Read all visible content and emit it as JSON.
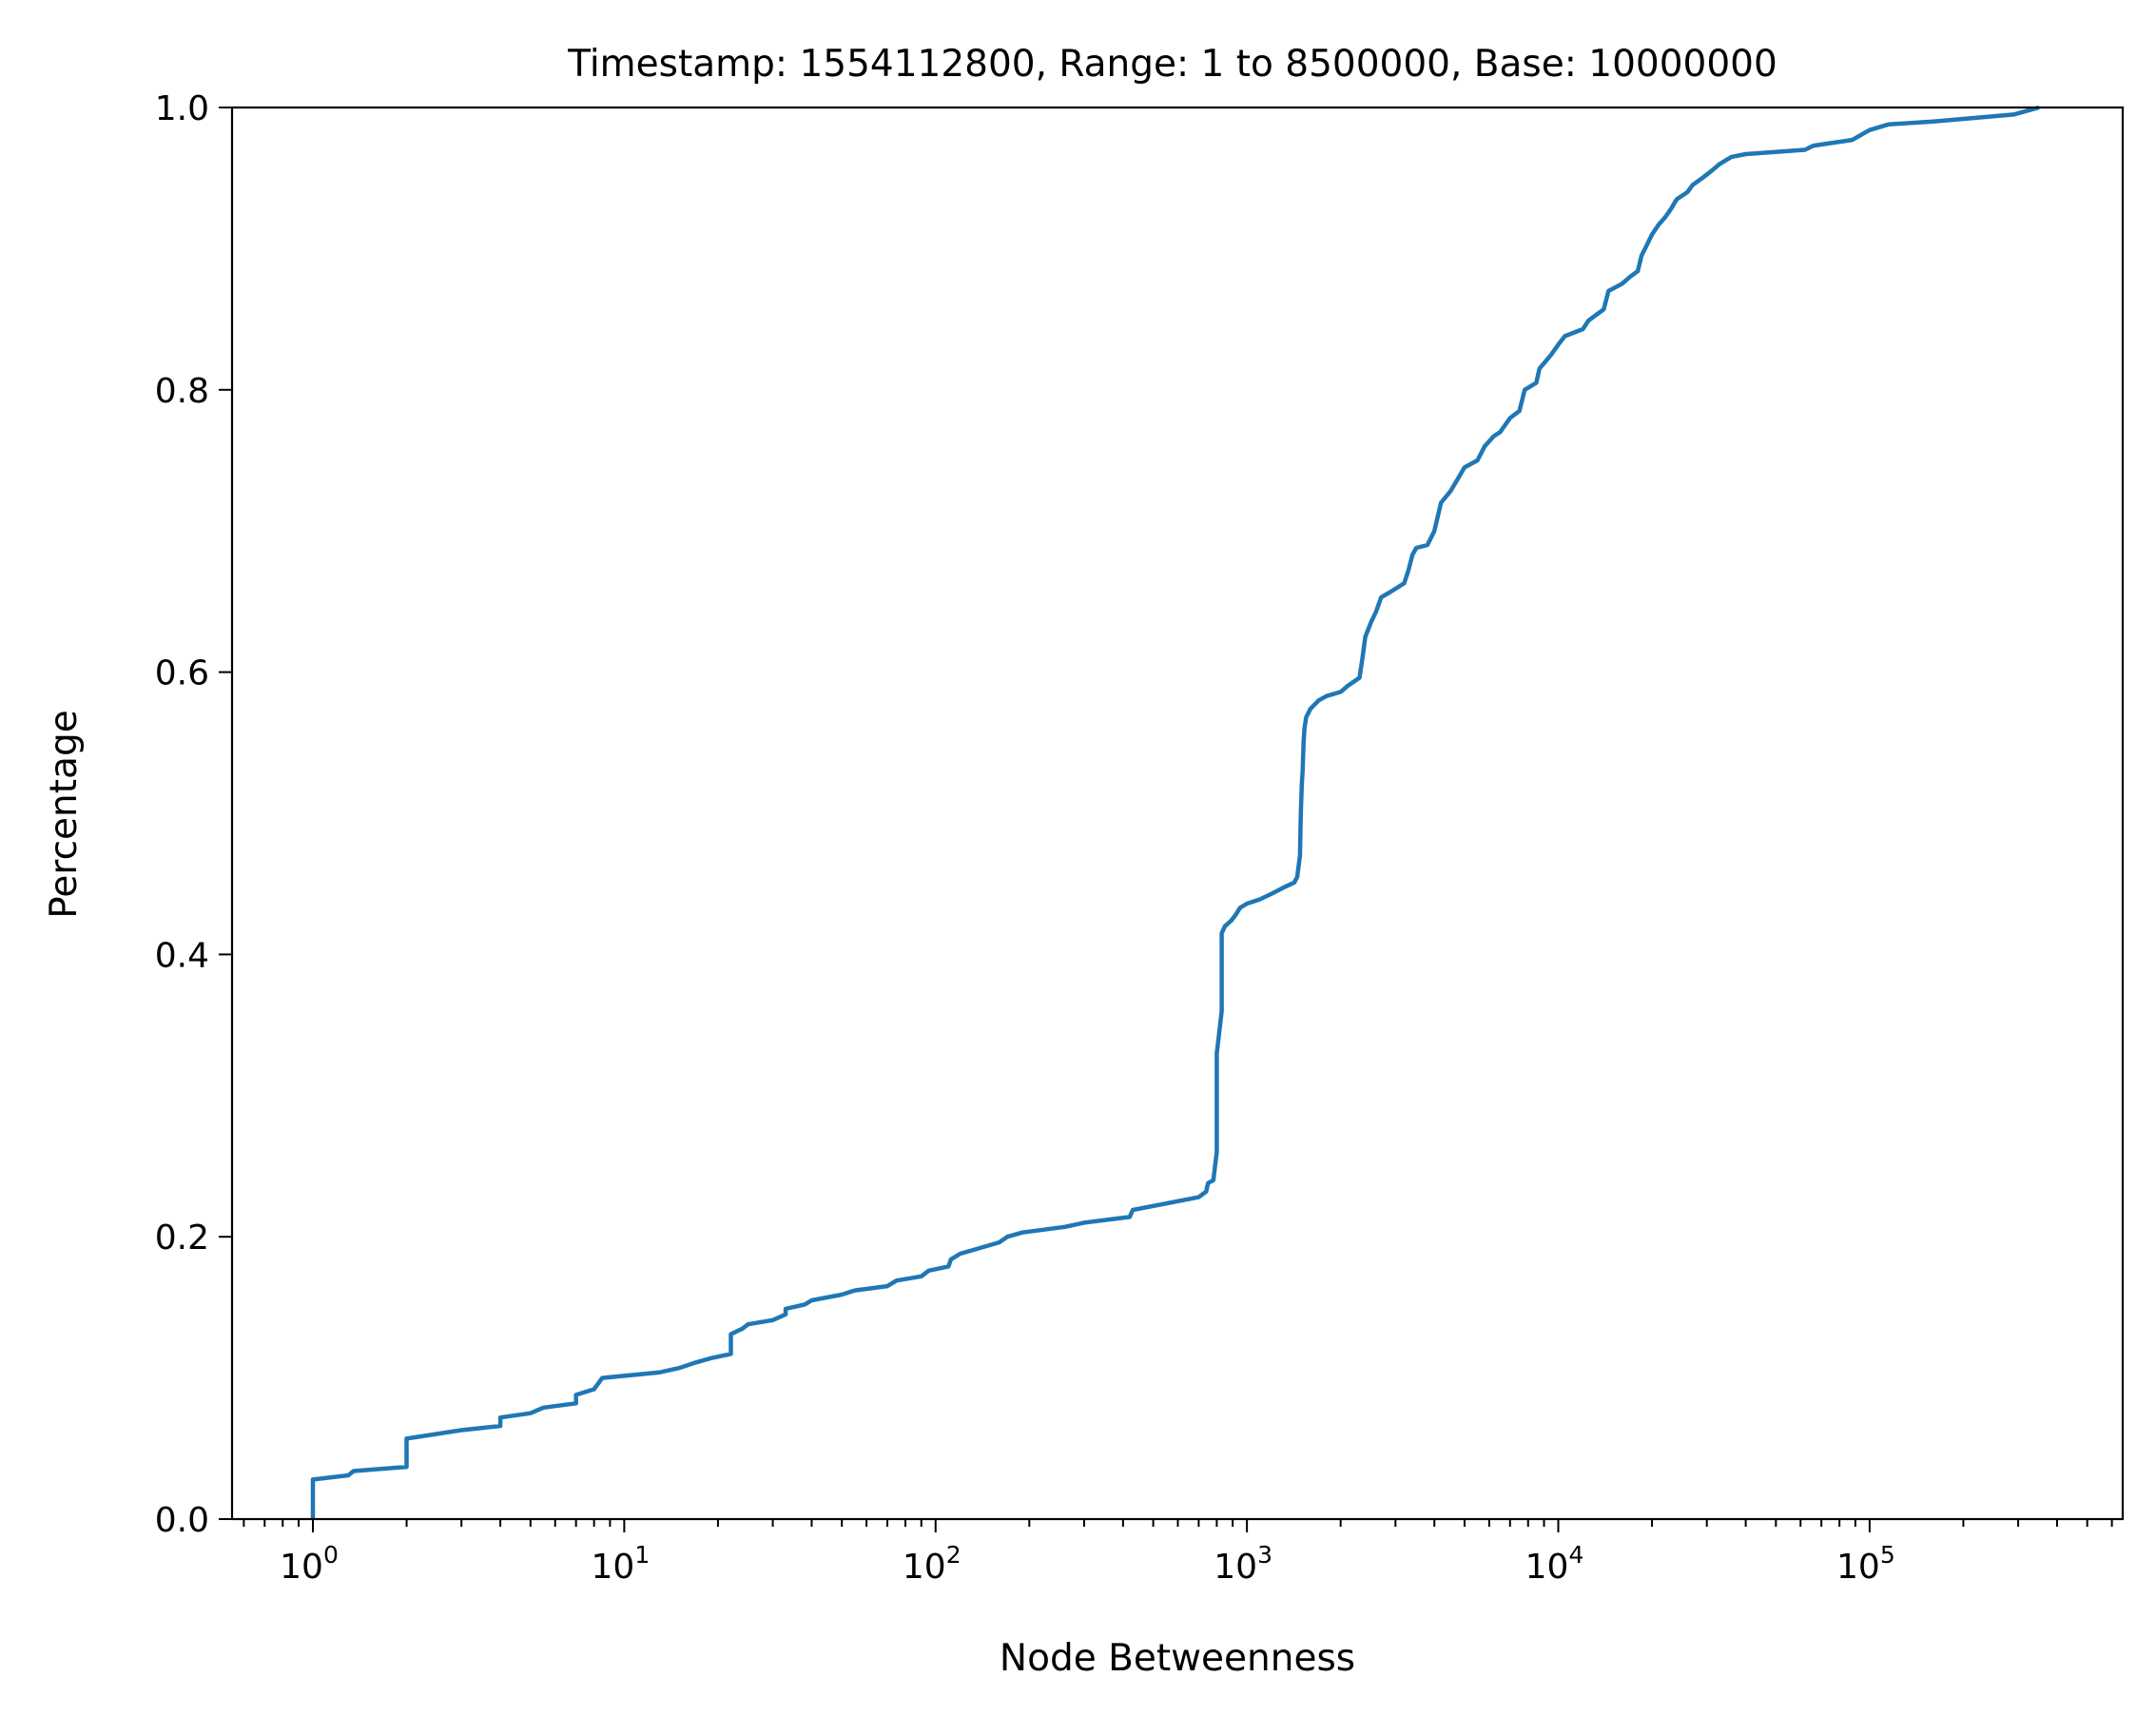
{
  "chart_data": {
    "type": "line",
    "title": "Timestamp: 1554112800, Range: 1 to 8500000, Base: 10000000",
    "xlabel": "Node Betweenness",
    "ylabel": "Percentage",
    "xscale": "log",
    "xlim": [
      0.55,
      650000
    ],
    "ylim": [
      0.0,
      1.0
    ],
    "grid": false,
    "legend": "none",
    "x_ticks": [
      {
        "base": "10",
        "exp": "0",
        "value": 1
      },
      {
        "base": "10",
        "exp": "1",
        "value": 10
      },
      {
        "base": "10",
        "exp": "2",
        "value": 100
      },
      {
        "base": "10",
        "exp": "3",
        "value": 1000
      },
      {
        "base": "10",
        "exp": "4",
        "value": 10000
      },
      {
        "base": "10",
        "exp": "5",
        "value": 100000
      }
    ],
    "y_ticks": [
      {
        "label": "0.0",
        "value": 0.0
      },
      {
        "label": "0.2",
        "value": 0.2
      },
      {
        "label": "0.4",
        "value": 0.4
      },
      {
        "label": "0.6",
        "value": 0.6
      },
      {
        "label": "0.8",
        "value": 0.8
      },
      {
        "label": "1.0",
        "value": 1.0
      }
    ],
    "series": [
      {
        "color": "#1f77b4",
        "points": [
          [
            1.0,
            0.0
          ],
          [
            1.0,
            0.028
          ],
          [
            1.3,
            0.031
          ],
          [
            1.35,
            0.034
          ],
          [
            2.0,
            0.037
          ],
          [
            2.0,
            0.057
          ],
          [
            3.0,
            0.063
          ],
          [
            4.0,
            0.066
          ],
          [
            4.0,
            0.072
          ],
          [
            5.0,
            0.075
          ],
          [
            5.5,
            0.079
          ],
          [
            7.0,
            0.082
          ],
          [
            7.0,
            0.088
          ],
          [
            8.0,
            0.092
          ],
          [
            8.5,
            0.1
          ],
          [
            13.0,
            0.104
          ],
          [
            15.0,
            0.107
          ],
          [
            17.0,
            0.111
          ],
          [
            19.0,
            0.114
          ],
          [
            22.0,
            0.117
          ],
          [
            22.0,
            0.131
          ],
          [
            24.0,
            0.135
          ],
          [
            25.0,
            0.138
          ],
          [
            30.0,
            0.141
          ],
          [
            33.0,
            0.145
          ],
          [
            33.0,
            0.149
          ],
          [
            38.0,
            0.152
          ],
          [
            40.0,
            0.155
          ],
          [
            50.0,
            0.159
          ],
          [
            55.0,
            0.162
          ],
          [
            70.0,
            0.165
          ],
          [
            75.0,
            0.169
          ],
          [
            90.0,
            0.172
          ],
          [
            95.0,
            0.176
          ],
          [
            110.0,
            0.179
          ],
          [
            112.0,
            0.184
          ],
          [
            120.0,
            0.188
          ],
          [
            160.0,
            0.196
          ],
          [
            170.0,
            0.2
          ],
          [
            190.0,
            0.203
          ],
          [
            260.0,
            0.207
          ],
          [
            300.0,
            0.21
          ],
          [
            420.0,
            0.214
          ],
          [
            430.0,
            0.219
          ],
          [
            700.0,
            0.228
          ],
          [
            740.0,
            0.232
          ],
          [
            750.0,
            0.238
          ],
          [
            780.0,
            0.24
          ],
          [
            790.0,
            0.25
          ],
          [
            800.0,
            0.26
          ],
          [
            800.0,
            0.33
          ],
          [
            810.0,
            0.34
          ],
          [
            820.0,
            0.35
          ],
          [
            830.0,
            0.36
          ],
          [
            830.0,
            0.415
          ],
          [
            850.0,
            0.42
          ],
          [
            890.0,
            0.424
          ],
          [
            920.0,
            0.428
          ],
          [
            950.0,
            0.433
          ],
          [
            1000.0,
            0.436
          ],
          [
            1100.0,
            0.439
          ],
          [
            1200.0,
            0.443
          ],
          [
            1300.0,
            0.447
          ],
          [
            1420.0,
            0.451
          ],
          [
            1450.0,
            0.455
          ],
          [
            1480.0,
            0.47
          ],
          [
            1490.0,
            0.5
          ],
          [
            1500.0,
            0.52
          ],
          [
            1510.0,
            0.53
          ],
          [
            1520.0,
            0.55
          ],
          [
            1530.0,
            0.56
          ],
          [
            1550.0,
            0.568
          ],
          [
            1600.0,
            0.574
          ],
          [
            1700.0,
            0.58
          ],
          [
            1800.0,
            0.583
          ],
          [
            2000.0,
            0.586
          ],
          [
            2100.0,
            0.59
          ],
          [
            2300.0,
            0.596
          ],
          [
            2350.0,
            0.61
          ],
          [
            2400.0,
            0.625
          ],
          [
            2500.0,
            0.635
          ],
          [
            2600.0,
            0.643
          ],
          [
            2700.0,
            0.653
          ],
          [
            2900.0,
            0.657
          ],
          [
            3200.0,
            0.663
          ],
          [
            3300.0,
            0.672
          ],
          [
            3400.0,
            0.683
          ],
          [
            3500.0,
            0.688
          ],
          [
            3800.0,
            0.69
          ],
          [
            4000.0,
            0.7
          ],
          [
            4100.0,
            0.71
          ],
          [
            4200.0,
            0.72
          ],
          [
            4500.0,
            0.728
          ],
          [
            4700.0,
            0.735
          ],
          [
            5000.0,
            0.745
          ],
          [
            5500.0,
            0.75
          ],
          [
            5800.0,
            0.76
          ],
          [
            6200.0,
            0.767
          ],
          [
            6500.0,
            0.77
          ],
          [
            7000.0,
            0.78
          ],
          [
            7500.0,
            0.785
          ],
          [
            7800.0,
            0.8
          ],
          [
            8500.0,
            0.805
          ],
          [
            8700.0,
            0.815
          ],
          [
            9500.0,
            0.825
          ],
          [
            10000.0,
            0.832
          ],
          [
            10500.0,
            0.838
          ],
          [
            12000.0,
            0.843
          ],
          [
            12500.0,
            0.849
          ],
          [
            14000.0,
            0.857
          ],
          [
            14500.0,
            0.87
          ],
          [
            16000.0,
            0.875
          ],
          [
            17000.0,
            0.88
          ],
          [
            18000.0,
            0.884
          ],
          [
            18500.0,
            0.895
          ],
          [
            19000.0,
            0.9
          ],
          [
            20000.0,
            0.91
          ],
          [
            21000.0,
            0.917
          ],
          [
            22000.0,
            0.922
          ],
          [
            23000.0,
            0.928
          ],
          [
            24000.0,
            0.935
          ],
          [
            26000.0,
            0.94
          ],
          [
            27000.0,
            0.945
          ],
          [
            29000.0,
            0.95
          ],
          [
            31000.0,
            0.955
          ],
          [
            33000.0,
            0.96
          ],
          [
            36000.0,
            0.965
          ],
          [
            40000.0,
            0.967
          ],
          [
            62000.0,
            0.97
          ],
          [
            66000.0,
            0.973
          ],
          [
            88000.0,
            0.977
          ],
          [
            100000.0,
            0.984
          ],
          [
            115000.0,
            0.988
          ],
          [
            160000.0,
            0.99
          ],
          [
            290000.0,
            0.995
          ],
          [
            350000.0,
            1.0
          ]
        ]
      }
    ]
  }
}
